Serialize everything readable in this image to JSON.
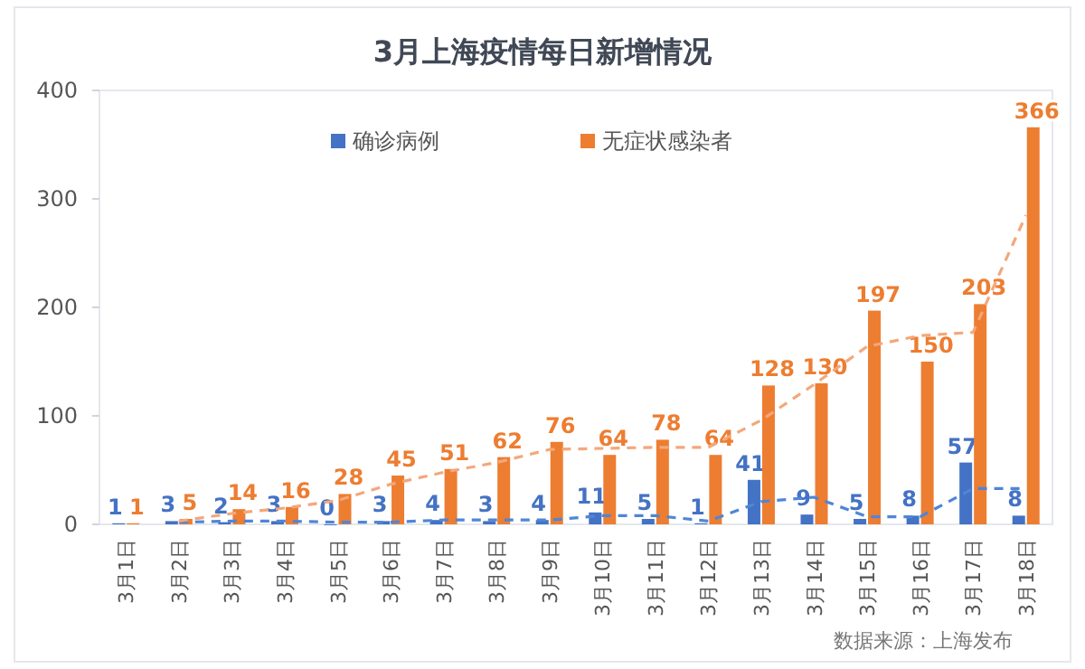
{
  "chart_data": {
    "type": "bar",
    "title": "3月上海疫情每日新增情况",
    "categories": [
      "3月1日",
      "3月2日",
      "3月3日",
      "3月4日",
      "3月5日",
      "3月6日",
      "3月7日",
      "3月8日",
      "3月9日",
      "3月10日",
      "3月11日",
      "3月12日",
      "3月13日",
      "3月14日",
      "3月15日",
      "3月16日",
      "3月17日",
      "3月18日"
    ],
    "series": [
      {
        "name": "确诊病例",
        "color": "#4472c4",
        "values": [
          1,
          3,
          2,
          3,
          0,
          3,
          4,
          3,
          4,
          11,
          5,
          1,
          41,
          9,
          5,
          8,
          57,
          8
        ],
        "value_labels": [
          "1",
          "3",
          "2",
          "3",
          "0",
          "3",
          "4",
          "3",
          "4",
          "11",
          "5",
          "1",
          "41",
          "9",
          "5",
          "8",
          "57",
          "8"
        ]
      },
      {
        "name": "无症状感染者",
        "color": "#ed7d31",
        "values": [
          1,
          5,
          14,
          16,
          28,
          45,
          51,
          62,
          76,
          64,
          78,
          64,
          128,
          130,
          197,
          150,
          203,
          366
        ],
        "value_labels": [
          "1",
          "5",
          "14",
          "16",
          "28",
          "45",
          "51",
          "62",
          "76",
          "64",
          "78",
          "64",
          "128",
          "130",
          "197",
          "150",
          "203",
          "366"
        ]
      },
      {
        "type": "line",
        "line_style": "dashed",
        "color": "#4f86d6",
        "x": [
          "3月2日",
          "3月3日",
          "3月4日",
          "3月5日",
          "3月6日",
          "3月7日",
          "3月8日",
          "3月9日",
          "3月10日",
          "3月11日",
          "3月12日",
          "3月13日",
          "3月14日",
          "3月15日",
          "3月16日",
          "3月17日",
          "3月18日"
        ],
        "values": [
          2,
          3,
          3,
          2,
          2,
          4,
          4,
          4,
          8,
          8,
          3,
          21,
          25,
          7,
          7,
          33,
          33
        ]
      },
      {
        "type": "line",
        "line_style": "dashed",
        "color": "#f4a77a",
        "x": [
          "3月2日",
          "3月3日",
          "3月4日",
          "3月5日",
          "3月6日",
          "3月7日",
          "3月8日",
          "3月9日",
          "3月10日",
          "3月11日",
          "3月12日",
          "3月13日",
          "3月14日",
          "3月15日",
          "3月16日",
          "3月17日",
          "3月18日"
        ],
        "values": [
          3,
          10,
          15,
          22,
          37,
          48,
          57,
          69,
          70,
          71,
          71,
          96,
          129,
          164,
          174,
          177,
          285
        ]
      }
    ],
    "ylim": [
      0,
      400
    ],
    "yticks": [
      0,
      100,
      200,
      300,
      400
    ],
    "legend": "top",
    "annotations": [
      "数据来源：上海发布"
    ]
  }
}
